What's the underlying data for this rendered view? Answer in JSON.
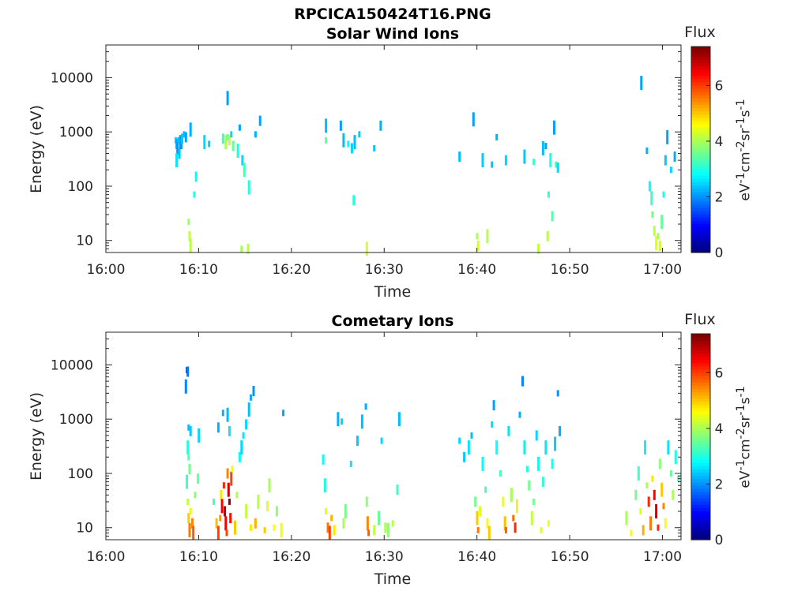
{
  "figure_title": "RPCICA150424T16.PNG",
  "chart_data": [
    {
      "type": "heatmap",
      "title": "Solar Wind Ions",
      "xlabel": "Time",
      "ylabel": "Energy (eV)",
      "x_ticks": [
        "16:00",
        "16:10",
        "16:20",
        "16:30",
        "16:40",
        "16:50",
        "17:00"
      ],
      "x_range_min": [
        0,
        62
      ],
      "y_scale": "log",
      "y_range_eV": [
        6,
        40000
      ],
      "y_ticks": [
        {
          "v": 10,
          "label": "10"
        },
        {
          "v": 100,
          "label": "100"
        },
        {
          "v": 1000,
          "label": "1000"
        },
        {
          "v": 10000,
          "label": "10000"
        }
      ],
      "colorbar": {
        "label": "Flux",
        "unit_html": "eV<sup>-1</sup>cm<sup>-2</sup>sr<sup>-1</sup>s<sup>-1</sup>",
        "range": [
          0,
          7.4
        ],
        "ticks": [
          "0",
          "2",
          "4",
          "6"
        ]
      },
      "grid": false,
      "cells": [
        [
          7.4,
          700,
          2.5
        ],
        [
          7.5,
          600,
          2.2
        ],
        [
          7.6,
          500,
          2.0
        ],
        [
          7.7,
          700,
          2.3
        ],
        [
          7.8,
          400,
          2.4
        ],
        [
          7.9,
          650,
          2.1
        ],
        [
          8.0,
          550,
          2.0
        ],
        [
          8.1,
          750,
          2.4
        ],
        [
          7.5,
          300,
          2.6
        ],
        [
          8.3,
          900,
          2.3
        ],
        [
          8.5,
          800,
          2.1
        ],
        [
          9.0,
          1100,
          2.2
        ],
        [
          8.8,
          22,
          3.9
        ],
        [
          8.9,
          12,
          4.2
        ],
        [
          9.0,
          8,
          4.1
        ],
        [
          9.4,
          70,
          3.0
        ],
        [
          9.6,
          150,
          2.8
        ],
        [
          10.5,
          650,
          2.5
        ],
        [
          11.0,
          600,
          2.4
        ],
        [
          12.5,
          750,
          3.2
        ],
        [
          12.8,
          650,
          4.0
        ],
        [
          13.0,
          800,
          3.6
        ],
        [
          13.2,
          700,
          4.2
        ],
        [
          13.0,
          4200,
          2.1
        ],
        [
          13.4,
          900,
          2.5
        ],
        [
          13.6,
          550,
          3.5
        ],
        [
          14.1,
          450,
          3.0
        ],
        [
          14.3,
          1200,
          2.1
        ],
        [
          14.6,
          300,
          2.5
        ],
        [
          14.8,
          200,
          3.3
        ],
        [
          14.5,
          7,
          4.0
        ],
        [
          15.2,
          7,
          4.1
        ],
        [
          15.3,
          95,
          3.0
        ],
        [
          16.0,
          900,
          2.2
        ],
        [
          16.5,
          1600,
          2.1
        ],
        [
          23.6,
          1300,
          2.3
        ],
        [
          23.6,
          700,
          3.5
        ],
        [
          25.2,
          1300,
          2.1
        ],
        [
          25.5,
          700,
          2.3
        ],
        [
          26.0,
          600,
          2.8
        ],
        [
          26.4,
          500,
          2.5
        ],
        [
          26.7,
          650,
          2.3
        ],
        [
          27.2,
          900,
          2.4
        ],
        [
          26.6,
          55,
          3.0
        ],
        [
          28.0,
          7,
          4.3
        ],
        [
          28.8,
          500,
          2.4
        ],
        [
          29.5,
          1300,
          2.2
        ],
        [
          39.5,
          1700,
          2.1
        ],
        [
          39.9,
          12,
          4.0
        ],
        [
          40.0,
          8,
          4.3
        ],
        [
          41.0,
          12,
          4.1
        ],
        [
          42.0,
          800,
          2.2
        ],
        [
          38.0,
          350,
          2.3
        ],
        [
          40.5,
          300,
          2.4
        ],
        [
          41.5,
          250,
          2.3
        ],
        [
          43.0,
          300,
          2.5
        ],
        [
          45.0,
          350,
          2.4
        ],
        [
          46.0,
          280,
          3.2
        ],
        [
          46.5,
          7,
          4.2
        ],
        [
          47.0,
          500,
          2.3
        ],
        [
          47.3,
          550,
          2.1
        ],
        [
          47.5,
          12,
          4.1
        ],
        [
          47.8,
          300,
          3.0
        ],
        [
          47.6,
          70,
          3.1
        ],
        [
          48.0,
          28,
          3.4
        ],
        [
          48.2,
          1200,
          2.1
        ],
        [
          48.4,
          250,
          3.3
        ],
        [
          48.6,
          220,
          2.5
        ],
        [
          57.6,
          8000,
          2.1
        ],
        [
          58.2,
          450,
          2.2
        ],
        [
          58.5,
          100,
          2.8
        ],
        [
          58.7,
          60,
          3.2
        ],
        [
          58.8,
          30,
          3.6
        ],
        [
          59.0,
          15,
          4.1
        ],
        [
          59.2,
          9,
          4.4
        ],
        [
          59.4,
          12,
          4.0
        ],
        [
          59.6,
          8,
          4.3
        ],
        [
          59.8,
          22,
          3.5
        ],
        [
          60.0,
          70,
          3.0
        ],
        [
          60.2,
          300,
          2.4
        ],
        [
          60.4,
          800,
          2.1
        ],
        [
          60.8,
          200,
          2.5
        ],
        [
          61.2,
          350,
          2.2
        ]
      ]
    },
    {
      "type": "heatmap",
      "title": "Cometary Ions",
      "xlabel": "Time",
      "ylabel": "Energy (eV)",
      "x_ticks": [
        "16:00",
        "16:10",
        "16:20",
        "16:30",
        "16:40",
        "16:50",
        "17:00"
      ],
      "x_range_min": [
        0,
        62
      ],
      "y_scale": "log",
      "y_range_eV": [
        6,
        40000
      ],
      "y_ticks": [
        {
          "v": 10,
          "label": "10"
        },
        {
          "v": 100,
          "label": "100"
        },
        {
          "v": 1000,
          "label": "1000"
        },
        {
          "v": 10000,
          "label": "10000"
        }
      ],
      "colorbar": {
        "label": "Flux",
        "unit_html": "eV<sup>-1</sup>cm<sup>-2</sup>sr<sup>-1</sup>s<sup>-1</sup>",
        "range": [
          0,
          7.4
        ],
        "ticks": [
          "0",
          "2",
          "4",
          "6"
        ]
      },
      "grid": false,
      "cells": [
        [
          8.6,
          8000,
          1.6
        ],
        [
          8.7,
          7500,
          1.8
        ],
        [
          8.5,
          4000,
          1.9
        ],
        [
          8.8,
          700,
          2.3
        ],
        [
          9.0,
          600,
          2.4
        ],
        [
          8.7,
          300,
          3.0
        ],
        [
          8.8,
          200,
          3.4
        ],
        [
          8.9,
          120,
          3.6
        ],
        [
          8.6,
          70,
          3.2
        ],
        [
          8.7,
          30,
          4.2
        ],
        [
          8.8,
          15,
          5.0
        ],
        [
          8.9,
          9,
          5.6
        ],
        [
          9.0,
          20,
          4.5
        ],
        [
          9.2,
          12,
          5.5
        ],
        [
          9.3,
          8,
          5.8
        ],
        [
          9.5,
          40,
          3.8
        ],
        [
          9.8,
          80,
          3.5
        ],
        [
          9.9,
          500,
          2.5
        ],
        [
          11.5,
          30,
          3.3
        ],
        [
          11.8,
          12,
          5.1
        ],
        [
          12.0,
          8,
          6.0
        ],
        [
          12.2,
          15,
          5.4
        ],
        [
          12.3,
          40,
          4.8
        ],
        [
          12.4,
          25,
          6.5
        ],
        [
          12.6,
          60,
          6.2
        ],
        [
          12.7,
          20,
          7.0
        ],
        [
          12.8,
          12,
          6.6
        ],
        [
          12.9,
          8,
          6.0
        ],
        [
          13.0,
          100,
          5.5
        ],
        [
          13.1,
          50,
          6.8
        ],
        [
          13.2,
          30,
          7.2
        ],
        [
          13.3,
          15,
          6.4
        ],
        [
          13.4,
          80,
          6.0
        ],
        [
          13.5,
          120,
          4.5
        ],
        [
          13.2,
          600,
          2.6
        ],
        [
          13.0,
          1200,
          2.3
        ],
        [
          12.5,
          1300,
          2.2
        ],
        [
          12.0,
          700,
          2.2
        ],
        [
          13.8,
          10,
          5.0
        ],
        [
          14.0,
          40,
          4.0
        ],
        [
          14.3,
          200,
          2.8
        ],
        [
          14.5,
          300,
          2.5
        ],
        [
          14.7,
          500,
          2.6
        ],
        [
          15.0,
          800,
          2.5
        ],
        [
          15.3,
          1500,
          2.3
        ],
        [
          15.5,
          2500,
          2.2
        ],
        [
          15.8,
          3300,
          2.0
        ],
        [
          15.0,
          20,
          4.2
        ],
        [
          15.5,
          10,
          4.8
        ],
        [
          16.0,
          12,
          5.2
        ],
        [
          16.3,
          30,
          4.1
        ],
        [
          17.0,
          9,
          5.0
        ],
        [
          17.3,
          25,
          4.4
        ],
        [
          17.5,
          60,
          4.0
        ],
        [
          18.0,
          10,
          4.6
        ],
        [
          18.3,
          20,
          3.8
        ],
        [
          18.8,
          9,
          4.5
        ],
        [
          19.0,
          1300,
          2.1
        ],
        [
          23.3,
          180,
          2.8
        ],
        [
          23.5,
          60,
          3.0
        ],
        [
          23.6,
          20,
          4.4
        ],
        [
          23.8,
          10,
          5.6
        ],
        [
          24.0,
          8,
          6.0
        ],
        [
          24.2,
          15,
          5.2
        ],
        [
          24.5,
          9,
          4.8
        ],
        [
          24.9,
          1000,
          2.2
        ],
        [
          25.3,
          900,
          2.5
        ],
        [
          25.5,
          12,
          4.0
        ],
        [
          25.7,
          20,
          3.6
        ],
        [
          26.3,
          150,
          2.6
        ],
        [
          27.0,
          400,
          2.4
        ],
        [
          27.5,
          900,
          2.3
        ],
        [
          27.9,
          1700,
          2.2
        ],
        [
          28.0,
          30,
          3.8
        ],
        [
          28.1,
          12,
          5.5
        ],
        [
          28.2,
          8,
          5.8
        ],
        [
          28.8,
          9,
          4.2
        ],
        [
          29.3,
          15,
          3.5
        ],
        [
          29.6,
          400,
          2.5
        ],
        [
          30.0,
          10,
          4.0
        ],
        [
          30.3,
          9,
          3.8
        ],
        [
          30.8,
          12,
          4.1
        ],
        [
          31.3,
          50,
          3.2
        ],
        [
          31.5,
          1000,
          2.3
        ],
        [
          38.0,
          400,
          2.5
        ],
        [
          38.5,
          200,
          2.4
        ],
        [
          39.0,
          300,
          2.6
        ],
        [
          39.3,
          500,
          2.3
        ],
        [
          39.7,
          30,
          3.6
        ],
        [
          39.9,
          15,
          5.0
        ],
        [
          40.0,
          9,
          5.6
        ],
        [
          40.2,
          20,
          4.4
        ],
        [
          40.5,
          150,
          2.8
        ],
        [
          40.8,
          50,
          3.3
        ],
        [
          41.0,
          12,
          4.6
        ],
        [
          41.2,
          8,
          5.0
        ],
        [
          41.5,
          800,
          2.5
        ],
        [
          41.7,
          1800,
          2.1
        ],
        [
          42.0,
          300,
          2.8
        ],
        [
          42.4,
          100,
          3.3
        ],
        [
          42.7,
          30,
          4.5
        ],
        [
          42.9,
          12,
          5.1
        ],
        [
          43.0,
          9,
          5.8
        ],
        [
          43.3,
          600,
          2.6
        ],
        [
          43.6,
          40,
          4.0
        ],
        [
          43.8,
          15,
          5.7
        ],
        [
          44.0,
          10,
          6.2
        ],
        [
          44.2,
          25,
          4.7
        ],
        [
          44.5,
          1200,
          2.2
        ],
        [
          44.8,
          5000,
          1.9
        ],
        [
          45.0,
          300,
          2.7
        ],
        [
          45.3,
          120,
          3.0
        ],
        [
          45.5,
          60,
          3.6
        ],
        [
          45.8,
          15,
          4.2
        ],
        [
          46.0,
          30,
          3.6
        ],
        [
          46.3,
          500,
          2.5
        ],
        [
          46.5,
          150,
          2.9
        ],
        [
          46.8,
          9,
          4.4
        ],
        [
          47.0,
          70,
          3.1
        ],
        [
          47.3,
          300,
          2.6
        ],
        [
          47.6,
          12,
          4.5
        ],
        [
          48.0,
          150,
          3.0
        ],
        [
          48.3,
          350,
          2.4
        ],
        [
          48.6,
          3000,
          2.0
        ],
        [
          48.8,
          600,
          2.2
        ],
        [
          56.0,
          15,
          4.0
        ],
        [
          56.5,
          8,
          4.6
        ],
        [
          57.0,
          40,
          3.6
        ],
        [
          57.3,
          100,
          3.2
        ],
        [
          57.5,
          20,
          4.5
        ],
        [
          57.8,
          9,
          5.2
        ],
        [
          58.0,
          300,
          2.7
        ],
        [
          58.2,
          60,
          4.0
        ],
        [
          58.4,
          30,
          6.2
        ],
        [
          58.6,
          12,
          5.6
        ],
        [
          58.8,
          80,
          4.8
        ],
        [
          59.0,
          40,
          6.5
        ],
        [
          59.2,
          20,
          6.8
        ],
        [
          59.4,
          10,
          6.2
        ],
        [
          59.6,
          150,
          3.8
        ],
        [
          59.8,
          50,
          5.0
        ],
        [
          60.0,
          25,
          5.5
        ],
        [
          60.2,
          12,
          4.6
        ],
        [
          60.5,
          300,
          2.6
        ],
        [
          60.8,
          100,
          3.5
        ],
        [
          61.0,
          40,
          4.0
        ],
        [
          61.3,
          200,
          3.0
        ],
        [
          61.6,
          80,
          3.3
        ]
      ]
    }
  ]
}
